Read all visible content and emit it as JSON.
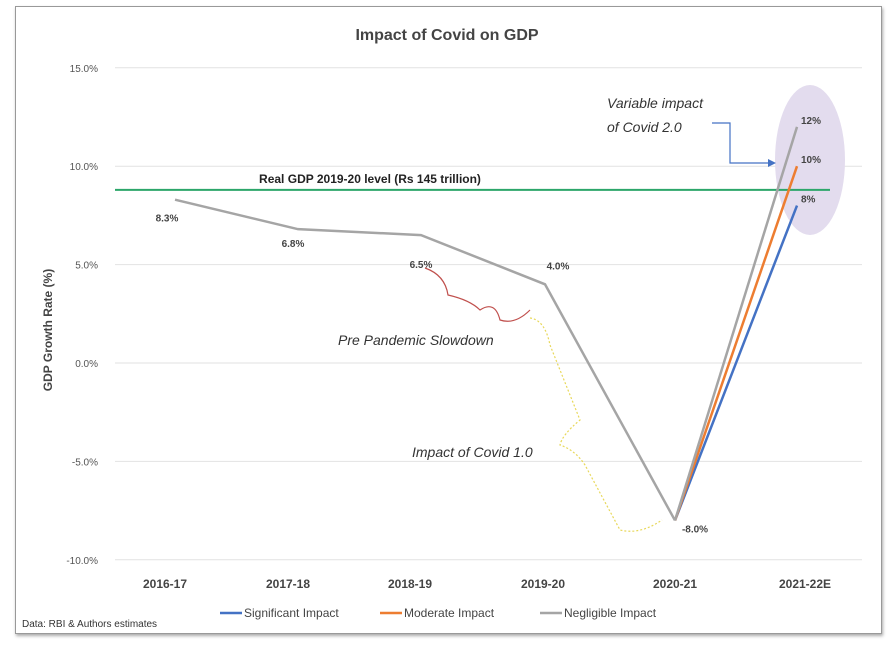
{
  "chart_data": {
    "type": "line",
    "title": "Impact of Covid on GDP",
    "ylabel": "GDP Growth Rate (%)",
    "xlabel": "",
    "ylim": [
      -10,
      15
    ],
    "yticks": [
      "15.0%",
      "10.0%",
      "5.0%",
      "0.0%",
      "-5.0%",
      "-10.0%"
    ],
    "ytick_values": [
      15,
      10,
      5,
      0,
      -5,
      -10
    ],
    "categories": [
      "2016-17",
      "2017-18",
      "2018-19",
      "2019-20",
      "2020-21",
      "2021-22E"
    ],
    "history": {
      "values": [
        8.3,
        6.8,
        6.5,
        4.0,
        -8.0
      ],
      "labels": [
        "8.3%",
        "6.8%",
        "6.5%",
        "4.0%",
        "-8.0%"
      ]
    },
    "series": [
      {
        "name": "Significant Impact",
        "color": "#4472c4",
        "values": [
          null,
          null,
          null,
          null,
          -8.0,
          8
        ],
        "end_label": "8%"
      },
      {
        "name": "Moderate Impact",
        "color": "#ed7d31",
        "values": [
          null,
          null,
          null,
          null,
          -8.0,
          10
        ],
        "end_label": "10%"
      },
      {
        "name": "Negligible Impact",
        "color": "#a5a5a5",
        "values": [
          null,
          null,
          null,
          null,
          -8.0,
          12
        ],
        "end_label": "12%"
      }
    ],
    "reference_line": {
      "value": 8.8,
      "label": "Real GDP 2019-20 level (Rs  145 trillion)",
      "color": "#2ca66a"
    },
    "annotations": {
      "covid2": "Variable impact",
      "covid2b": "of Covid 2.0",
      "slowdown": "Pre Pandemic Slowdown",
      "covid1": "Impact of Covid 1.0"
    },
    "legend_position": "bottom",
    "grid": true,
    "source": "Data: RBI & Authors estimates"
  }
}
